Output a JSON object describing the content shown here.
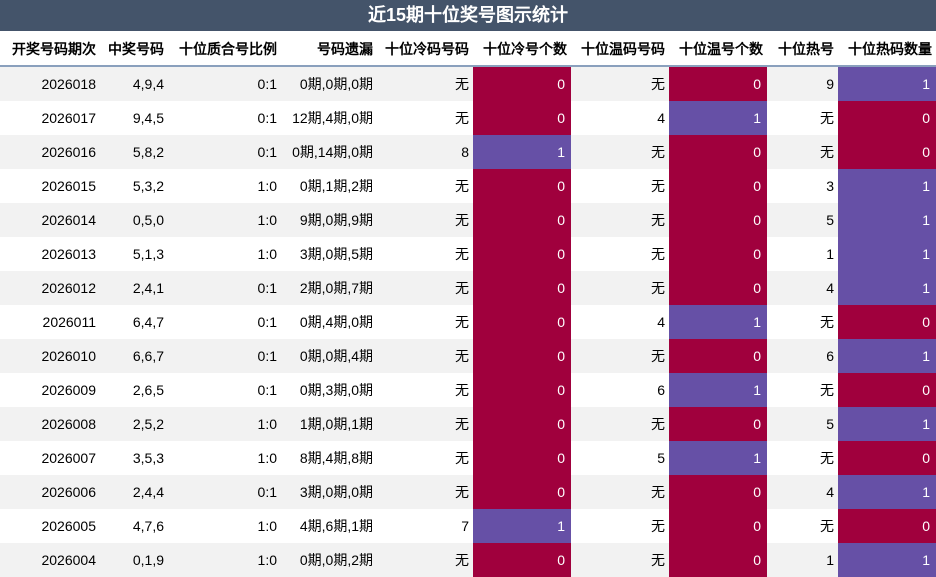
{
  "title": "近15期十位奖号图示统计",
  "colors": {
    "title_bg": "#44546a",
    "purple": "#6650a6",
    "crimson": "#a0003d",
    "stripe": "#f2f2f2"
  },
  "headers": [
    "开奖号码期次",
    "中奖号码",
    "十位质合号比例",
    "号码遗漏",
    "十位冷码号码",
    "十位冷号个数",
    "十位温码号码",
    "十位温号个数",
    "十位热号",
    "十位热码数量"
  ],
  "rows": [
    [
      "2026018",
      "4,9,4",
      "0:1",
      "0期,0期,0期",
      "无",
      "0",
      "无",
      "0",
      "9",
      "1"
    ],
    [
      "2026017",
      "9,4,5",
      "0:1",
      "12期,4期,0期",
      "无",
      "0",
      "4",
      "1",
      "无",
      "0"
    ],
    [
      "2026016",
      "5,8,2",
      "0:1",
      "0期,14期,0期",
      "8",
      "1",
      "无",
      "0",
      "无",
      "0"
    ],
    [
      "2026015",
      "5,3,2",
      "1:0",
      "0期,1期,2期",
      "无",
      "0",
      "无",
      "0",
      "3",
      "1"
    ],
    [
      "2026014",
      "0,5,0",
      "1:0",
      "9期,0期,9期",
      "无",
      "0",
      "无",
      "0",
      "5",
      "1"
    ],
    [
      "2026013",
      "5,1,3",
      "1:0",
      "3期,0期,5期",
      "无",
      "0",
      "无",
      "0",
      "1",
      "1"
    ],
    [
      "2026012",
      "2,4,1",
      "0:1",
      "2期,0期,7期",
      "无",
      "0",
      "无",
      "0",
      "4",
      "1"
    ],
    [
      "2026011",
      "6,4,7",
      "0:1",
      "0期,4期,0期",
      "无",
      "0",
      "4",
      "1",
      "无",
      "0"
    ],
    [
      "2026010",
      "6,6,7",
      "0:1",
      "0期,0期,4期",
      "无",
      "0",
      "无",
      "0",
      "6",
      "1"
    ],
    [
      "2026009",
      "2,6,5",
      "0:1",
      "0期,3期,0期",
      "无",
      "0",
      "6",
      "1",
      "无",
      "0"
    ],
    [
      "2026008",
      "2,5,2",
      "1:0",
      "1期,0期,1期",
      "无",
      "0",
      "无",
      "0",
      "5",
      "1"
    ],
    [
      "2026007",
      "3,5,3",
      "1:0",
      "8期,4期,8期",
      "无",
      "0",
      "5",
      "1",
      "无",
      "0"
    ],
    [
      "2026006",
      "2,4,4",
      "0:1",
      "3期,0期,0期",
      "无",
      "0",
      "无",
      "0",
      "4",
      "1"
    ],
    [
      "2026005",
      "4,7,6",
      "1:0",
      "4期,6期,1期",
      "7",
      "1",
      "无",
      "0",
      "无",
      "0"
    ],
    [
      "2026004",
      "0,1,9",
      "1:0",
      "0期,0期,2期",
      "无",
      "0",
      "无",
      "0",
      "1",
      "1"
    ]
  ]
}
